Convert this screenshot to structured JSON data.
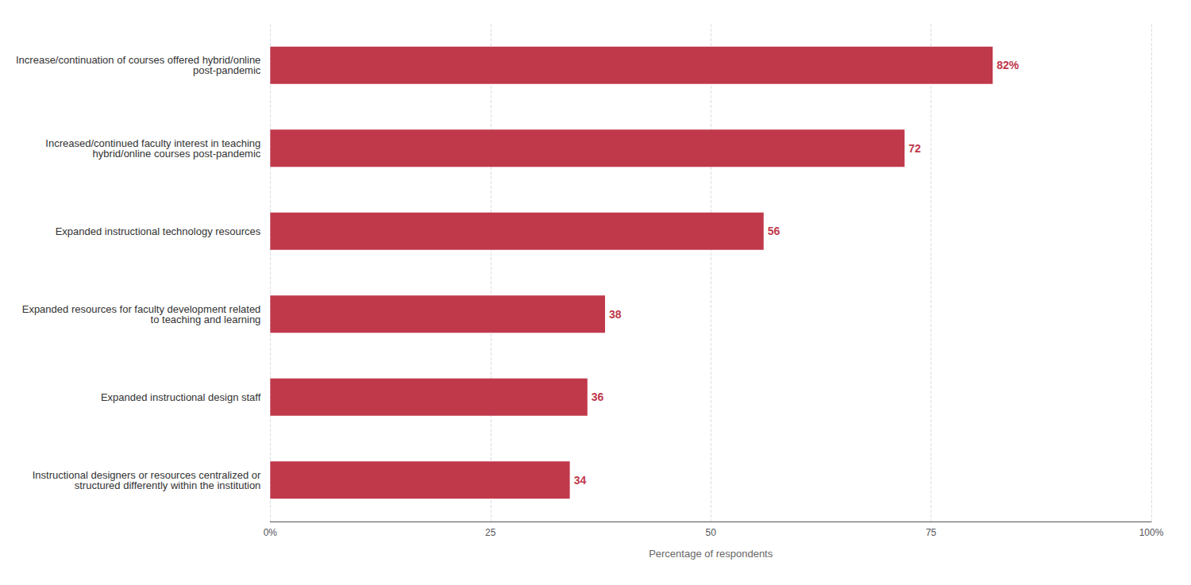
{
  "chart_data": {
    "type": "bar",
    "orientation": "horizontal",
    "categories": [
      "Instructional designers or resources centralized or\nstructured differently within the institution",
      "Expanded instructional design staff",
      "Expanded resources for faculty development related\nto teaching and learning",
      "Expanded instructional technology resources",
      "Increased/continued faculty interest in teaching\nhybrid/online courses post-pandemic",
      "Increase/continuation of courses offered hybrid/online\npost-pandemic"
    ],
    "values": [
      34,
      36,
      38,
      56,
      72,
      82
    ],
    "value_labels": [
      "34",
      "36",
      "38",
      "56",
      "72",
      "82%"
    ],
    "color": "#c0394b",
    "xlabel": "Percentage of respondents",
    "xlim": [
      0,
      100
    ],
    "xticks": [
      {
        "value": 0,
        "label": "0%"
      },
      25,
      50,
      75,
      {
        "value": 100,
        "label": "100%"
      }
    ],
    "grid": true,
    "data_labels": true
  }
}
